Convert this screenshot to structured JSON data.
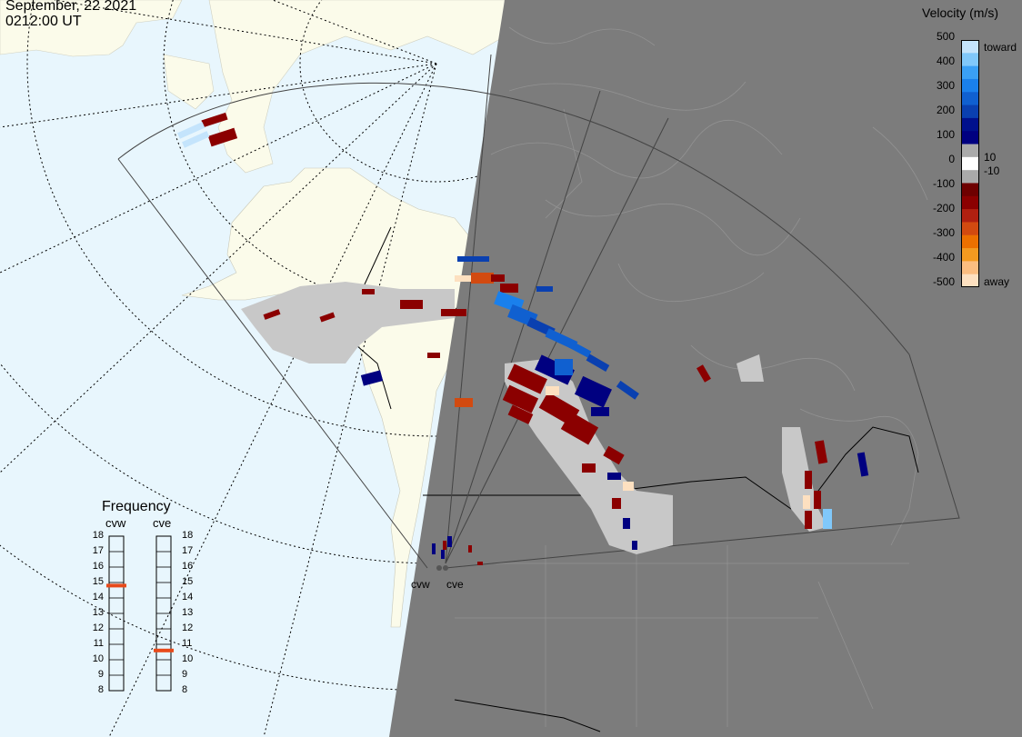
{
  "header": {
    "date": "September, 22 2021",
    "time": "0212:00 UT"
  },
  "colorbar": {
    "title": "Velocity (m/s)",
    "ticks": [
      "500",
      "400",
      "300",
      "200",
      "100",
      "0",
      "-100",
      "-200",
      "-300",
      "-400",
      "-500"
    ],
    "side_labels": {
      "toward": "toward",
      "plus10": "10",
      "minus10": "-10",
      "away": "away"
    },
    "colors": [
      "#fde0c0",
      "#fbbd80",
      "#f39a20",
      "#ec7000",
      "#d24a10",
      "#b02010",
      "#8b0000",
      "#6e0000",
      "#aaaaaa",
      "#ffffff",
      "#aaaaaa",
      "#000080",
      "#00108c",
      "#0a40b0",
      "#1060d0",
      "#1a80ec",
      "#3aa0f5",
      "#80c8fa",
      "#c4e4fc"
    ]
  },
  "frequency": {
    "title": "Frequency",
    "radars": [
      "cvw",
      "cve"
    ],
    "levels": [
      "18",
      "17",
      "16",
      "15",
      "14",
      "13",
      "12",
      "11",
      "10",
      "9",
      "8"
    ],
    "cvw_mhz": 14.8,
    "cve_mhz": 10.6,
    "marker_color": "#e84a1a"
  },
  "sites": {
    "cvw": "cvw",
    "cve": "cve"
  },
  "map_colors": {
    "ocean_day": "#e8f6fd",
    "land_day": "#fbfbea",
    "night": "#7c7c7c",
    "ground_scatter": "#c8c8c8"
  }
}
